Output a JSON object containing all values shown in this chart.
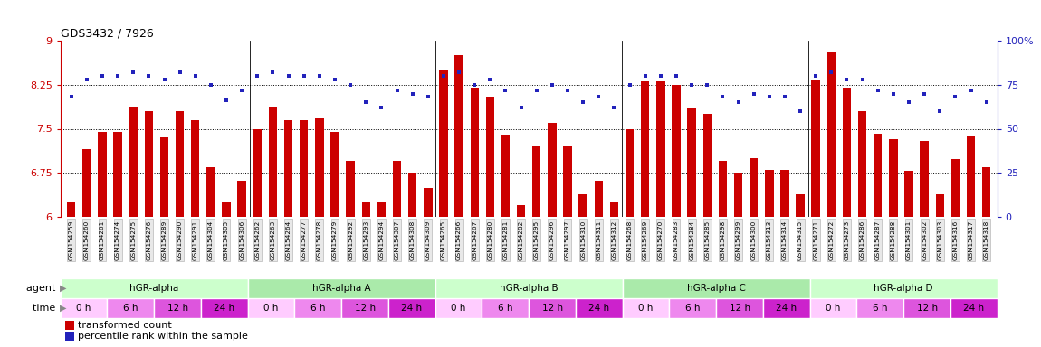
{
  "title": "GDS3432 / 7926",
  "samples": [
    "GSM154259",
    "GSM154260",
    "GSM154261",
    "GSM154274",
    "GSM154275",
    "GSM154276",
    "GSM154289",
    "GSM154290",
    "GSM154291",
    "GSM154304",
    "GSM154305",
    "GSM154306",
    "GSM154262",
    "GSM154263",
    "GSM154264",
    "GSM154277",
    "GSM154278",
    "GSM154279",
    "GSM154292",
    "GSM154293",
    "GSM154294",
    "GSM154307",
    "GSM154308",
    "GSM154309",
    "GSM154265",
    "GSM154266",
    "GSM154267",
    "GSM154280",
    "GSM154281",
    "GSM154282",
    "GSM154295",
    "GSM154296",
    "GSM154297",
    "GSM154310",
    "GSM154311",
    "GSM154312",
    "GSM154268",
    "GSM154269",
    "GSM154270",
    "GSM154283",
    "GSM154284",
    "GSM154285",
    "GSM154298",
    "GSM154299",
    "GSM154300",
    "GSM154313",
    "GSM154314",
    "GSM154315",
    "GSM154271",
    "GSM154272",
    "GSM154273",
    "GSM154286",
    "GSM154287",
    "GSM154288",
    "GSM154301",
    "GSM154302",
    "GSM154303",
    "GSM154316",
    "GSM154317",
    "GSM154318"
  ],
  "bar_values": [
    6.25,
    7.15,
    7.44,
    7.44,
    7.88,
    7.8,
    7.35,
    7.8,
    7.65,
    6.85,
    6.25,
    6.62,
    7.5,
    7.88,
    7.65,
    7.65,
    7.68,
    7.45,
    6.95,
    6.25,
    6.25,
    6.95,
    6.75,
    6.5,
    8.5,
    8.75,
    8.2,
    8.05,
    7.4,
    6.2,
    7.2,
    7.6,
    7.2,
    6.38,
    6.62,
    6.25,
    7.5,
    8.3,
    8.3,
    8.25,
    7.85,
    7.75,
    6.95,
    6.75,
    7.0,
    6.8,
    6.8,
    6.38,
    8.32,
    8.8,
    8.2,
    7.8,
    7.42,
    7.32,
    6.78,
    7.3,
    6.38,
    6.98,
    7.38,
    6.85
  ],
  "blue_values": [
    68,
    78,
    80,
    80,
    82,
    80,
    78,
    82,
    80,
    75,
    66,
    72,
    80,
    82,
    80,
    80,
    80,
    78,
    75,
    65,
    62,
    72,
    70,
    68,
    80,
    82,
    75,
    78,
    72,
    62,
    72,
    75,
    72,
    65,
    68,
    62,
    75,
    80,
    80,
    80,
    75,
    75,
    68,
    65,
    70,
    68,
    68,
    60,
    80,
    82,
    78,
    78,
    72,
    70,
    65,
    70,
    60,
    68,
    72,
    65
  ],
  "agents": [
    {
      "label": "hGR-alpha",
      "start": 0,
      "end": 12
    },
    {
      "label": "hGR-alpha A",
      "start": 12,
      "end": 24
    },
    {
      "label": "hGR-alpha B",
      "start": 24,
      "end": 36
    },
    {
      "label": "hGR-alpha C",
      "start": 36,
      "end": 48
    },
    {
      "label": "hGR-alpha D",
      "start": 48,
      "end": 60
    }
  ],
  "times": [
    {
      "label": "0 h",
      "start": 0,
      "end": 3
    },
    {
      "label": "6 h",
      "start": 3,
      "end": 6
    },
    {
      "label": "12 h",
      "start": 6,
      "end": 9
    },
    {
      "label": "24 h",
      "start": 9,
      "end": 12
    },
    {
      "label": "0 h",
      "start": 12,
      "end": 15
    },
    {
      "label": "6 h",
      "start": 15,
      "end": 18
    },
    {
      "label": "12 h",
      "start": 18,
      "end": 21
    },
    {
      "label": "24 h",
      "start": 21,
      "end": 24
    },
    {
      "label": "0 h",
      "start": 24,
      "end": 27
    },
    {
      "label": "6 h",
      "start": 27,
      "end": 30
    },
    {
      "label": "12 h",
      "start": 30,
      "end": 33
    },
    {
      "label": "24 h",
      "start": 33,
      "end": 36
    },
    {
      "label": "0 h",
      "start": 36,
      "end": 39
    },
    {
      "label": "6 h",
      "start": 39,
      "end": 42
    },
    {
      "label": "12 h",
      "start": 42,
      "end": 45
    },
    {
      "label": "24 h",
      "start": 45,
      "end": 48
    },
    {
      "label": "0 h",
      "start": 48,
      "end": 51
    },
    {
      "label": "6 h",
      "start": 51,
      "end": 54
    },
    {
      "label": "12 h",
      "start": 54,
      "end": 57
    },
    {
      "label": "24 h",
      "start": 57,
      "end": 60
    }
  ],
  "ylim_left": [
    6,
    9
  ],
  "yticks_left": [
    6,
    6.75,
    7.5,
    8.25,
    9
  ],
  "ylim_right": [
    0,
    100
  ],
  "yticks_right": [
    0,
    25,
    50,
    75,
    100
  ],
  "hline_values": [
    6.75,
    7.5,
    8.25
  ],
  "bar_color": "#cc0000",
  "dot_color": "#2222bb",
  "agent_color_light": "#ccffcc",
  "agent_color_dark": "#aaeaaa",
  "time_colors": [
    "#ffccff",
    "#ee88ee",
    "#dd55dd",
    "#cc22cc"
  ],
  "legend_bar_label": "transformed count",
  "legend_dot_label": "percentile rank within the sample"
}
